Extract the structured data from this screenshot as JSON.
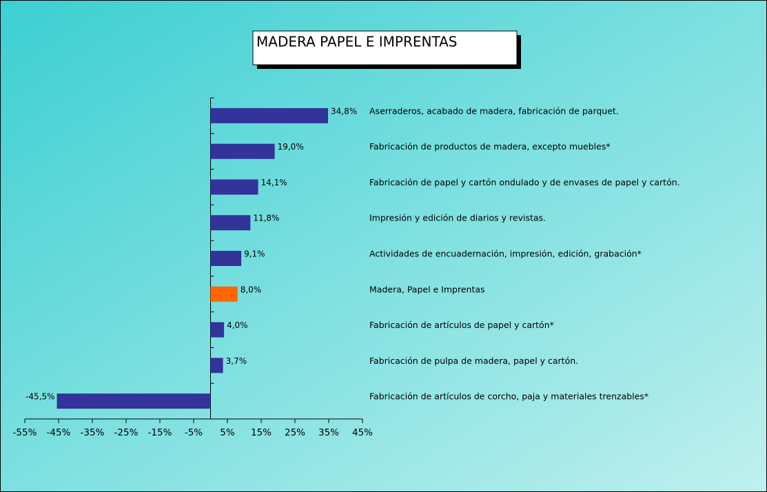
{
  "chart_data": {
    "type": "hbar",
    "title": "MADERA PAPEL E IMPRENTAS",
    "categories": [
      "Aserraderos, acabado de madera, fabricación de parquet.",
      "Fabricación de productos de madera, excepto muebles*",
      "Fabricación de papel y cartón ondulado y de envases de papel y cartón.",
      "Impresión y edición de diarios y revistas.",
      "Actividades de encuadernación, impresión, edición, grabación*",
      "Madera, Papel e Imprentas",
      "Fabricación de artículos de papel y cartón*",
      "Fabricación de pulpa de madera, papel y cartón.",
      "Fabricación de artículos de corcho, paja y materiales trenzables*"
    ],
    "values": [
      34.8,
      19.0,
      14.1,
      11.8,
      9.1,
      8.0,
      4.0,
      3.7,
      -45.5
    ],
    "value_labels": [
      "34,8%",
      "19,0%",
      "14,1%",
      "11,8%",
      "9,1%",
      "8,0%",
      "4,0%",
      "3,7%",
      "-45,5%"
    ],
    "colors": [
      "#333399",
      "#333399",
      "#333399",
      "#333399",
      "#333399",
      "#ff6600",
      "#333399",
      "#333399",
      "#333399"
    ],
    "xlim": [
      -55,
      45
    ],
    "xticks": [
      {
        "value": -55,
        "label": "-55%"
      },
      {
        "value": -45,
        "label": "-45%"
      },
      {
        "value": -35,
        "label": "-35%"
      },
      {
        "value": -25,
        "label": "-25%"
      },
      {
        "value": -15,
        "label": "-15%"
      },
      {
        "value": -5,
        "label": "-5%"
      },
      {
        "value": 5,
        "label": "5%"
      },
      {
        "value": 15,
        "label": "15%"
      },
      {
        "value": 25,
        "label": "25%"
      },
      {
        "value": 35,
        "label": "35%"
      },
      {
        "value": 45,
        "label": "45%"
      }
    ],
    "grid": false
  }
}
